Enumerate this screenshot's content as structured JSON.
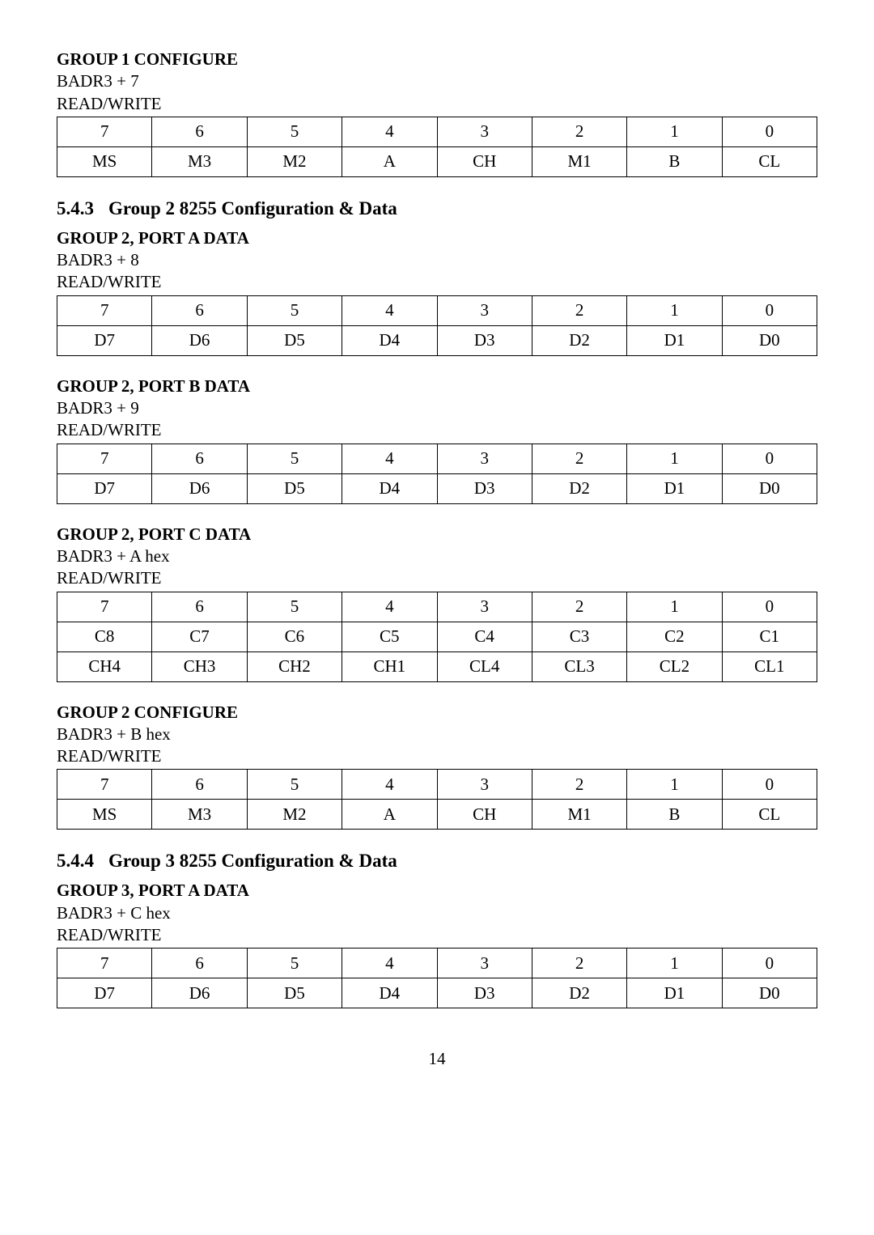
{
  "sections": [
    {
      "title": "GROUP 1 CONFIGURE",
      "addr": "BADR3 + 7",
      "rw": "READ/WRITE",
      "rows": [
        [
          "7",
          "6",
          "5",
          "4",
          "3",
          "2",
          "1",
          "0"
        ],
        [
          "MS",
          "M3",
          "M2",
          "A",
          "CH",
          "M1",
          "B",
          "CL"
        ]
      ]
    }
  ],
  "subsec1": {
    "num": "5.4.3",
    "title": "Group 2 8255 Configuration & Data"
  },
  "sections2": [
    {
      "title": "GROUP 2, PORT A DATA",
      "addr": "BADR3 + 8",
      "rw": "READ/WRITE",
      "rows": [
        [
          "7",
          "6",
          "5",
          "4",
          "3",
          "2",
          "1",
          "0"
        ],
        [
          "D7",
          "D6",
          "D5",
          "D4",
          "D3",
          "D2",
          "D1",
          "D0"
        ]
      ]
    },
    {
      "title": "GROUP 2, PORT B DATA",
      "addr": "BADR3 + 9",
      "rw": "READ/WRITE",
      "rows": [
        [
          "7",
          "6",
          "5",
          "4",
          "3",
          "2",
          "1",
          "0"
        ],
        [
          "D7",
          "D6",
          "D5",
          "D4",
          "D3",
          "D2",
          "D1",
          "D0"
        ]
      ]
    },
    {
      "title": "GROUP 2, PORT C DATA",
      "addr": "BADR3 + A hex",
      "rw": "READ/WRITE",
      "rows": [
        [
          "7",
          "6",
          "5",
          "4",
          "3",
          "2",
          "1",
          "0"
        ],
        [
          "C8",
          "C7",
          "C6",
          "C5",
          "C4",
          "C3",
          "C2",
          "C1"
        ],
        [
          "CH4",
          "CH3",
          "CH2",
          "CH1",
          "CL4",
          "CL3",
          "CL2",
          "CL1"
        ]
      ]
    },
    {
      "title": "GROUP 2 CONFIGURE",
      "addr": "BADR3 + B hex",
      "rw": "READ/WRITE",
      "rows": [
        [
          "7",
          "6",
          "5",
          "4",
          "3",
          "2",
          "1",
          "0"
        ],
        [
          "MS",
          "M3",
          "M2",
          "A",
          "CH",
          "M1",
          "B",
          "CL"
        ]
      ]
    }
  ],
  "subsec2": {
    "num": "5.4.4",
    "title": "Group 3 8255 Configuration & Data"
  },
  "sections3": [
    {
      "title": "GROUP 3, PORT A DATA",
      "addr": "BADR3 + C hex",
      "rw": "READ/WRITE",
      "rows": [
        [
          "7",
          "6",
          "5",
          "4",
          "3",
          "2",
          "1",
          "0"
        ],
        [
          "D7",
          "D6",
          "D5",
          "D4",
          "D3",
          "D2",
          "D1",
          "D0"
        ]
      ]
    }
  ],
  "pageNumber": "14"
}
